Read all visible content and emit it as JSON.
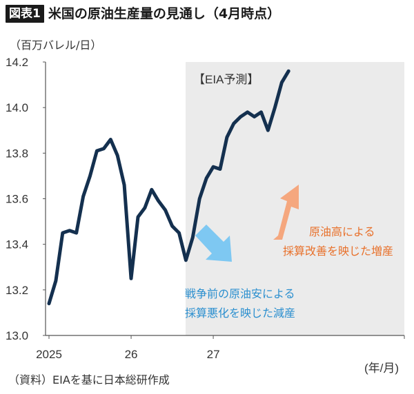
{
  "header": {
    "badge": "図表1",
    "title": "米国の原油生産量の見通し（4月時点）"
  },
  "unit_label": "（百万バレル/日）",
  "source": "（資料）EIAを基に日本総研作成",
  "forecast_label": "【EIA予測】",
  "x_unit_label": "(年/月)",
  "annotations": {
    "down_line1": "戦争前の原油安による",
    "down_line2": "採算悪化を映じた減産",
    "up_line1": "原油高による",
    "up_line2": "採算改善を映じた増産"
  },
  "colors": {
    "line": "#14304f",
    "forecast_shade": "#ebebeb",
    "down_arrow": "#7ec8f2",
    "up_arrow": "#f5a77e",
    "down_text": "#2b8fcf",
    "up_text": "#e8702a"
  },
  "chart_data": {
    "type": "line",
    "title": "米国の原油生産量の見通し（4月時点）",
    "ylabel": "（百万バレル/日）",
    "xlabel": "(年/月)",
    "ylim": [
      13.0,
      14.2
    ],
    "y_ticks": [
      "13.0",
      "13.2",
      "13.4",
      "13.6",
      "13.8",
      "14.0",
      "14.2"
    ],
    "x_tick_labels": [
      "2025",
      "26",
      "27"
    ],
    "forecast_region": "26/3–27/12 (EIA予測)",
    "series": [
      {
        "values": [
          13.14,
          13.24,
          13.45,
          13.46,
          13.45,
          13.61,
          13.7,
          13.81,
          13.82,
          13.86,
          13.79,
          13.66,
          13.25,
          13.52,
          13.56,
          13.64,
          13.59,
          13.55,
          13.48,
          13.45,
          13.33,
          13.43,
          13.6,
          13.69,
          13.74,
          13.73,
          13.87,
          13.93,
          13.96,
          13.98,
          13.96,
          13.98,
          13.9,
          14.0,
          14.11,
          14.16
        ]
      }
    ]
  }
}
